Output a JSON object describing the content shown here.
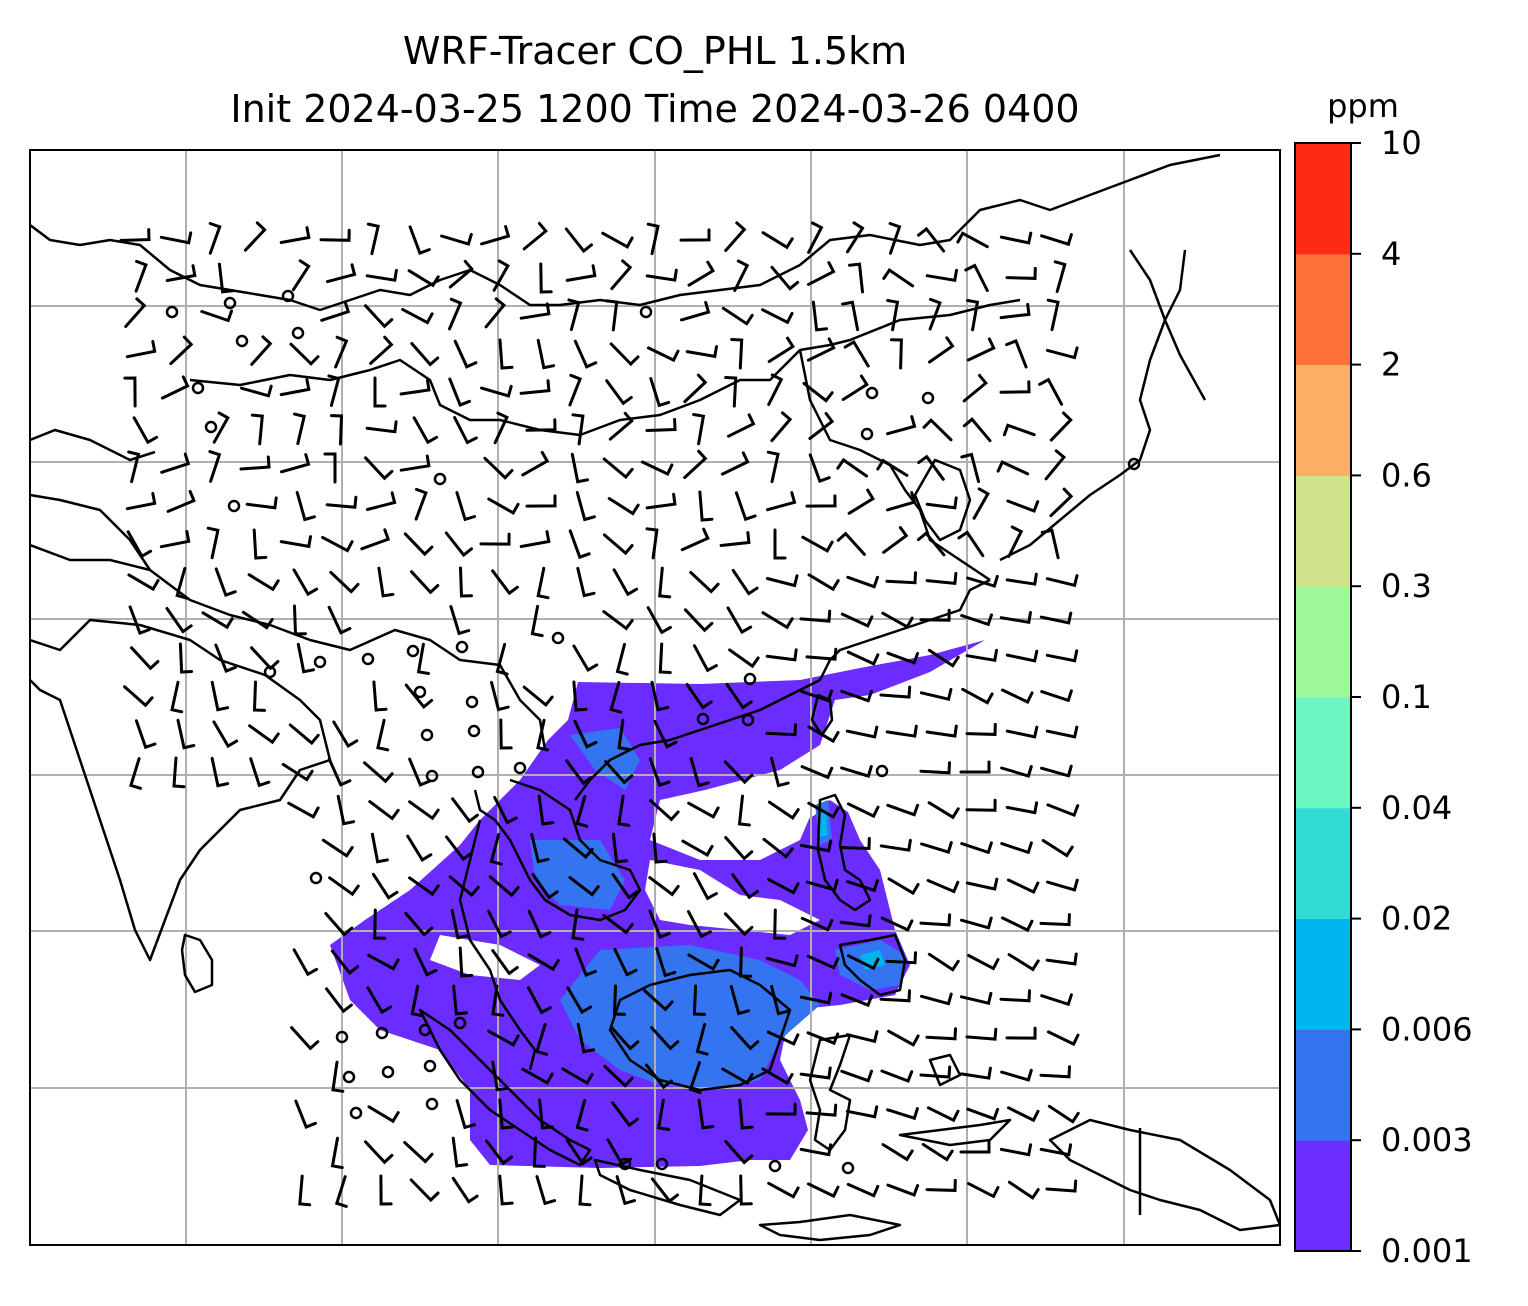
{
  "title": {
    "line1": "WRF-Tracer CO_PHL 1.5km",
    "line2": "Init 2024-03-25 1200 Time 2024-03-26 0400"
  },
  "colorbar": {
    "unit": "ppm",
    "levels": [
      "0.001",
      "0.003",
      "0.006",
      "0.02",
      "0.04",
      "0.1",
      "0.3",
      "0.6",
      "2",
      "4",
      "10"
    ],
    "colors": [
      "#6a2cff",
      "#3574f0",
      "#00b4ee",
      "#30ddd6",
      "#6af7c2",
      "#9efa9b",
      "#cfe28c",
      "#fbae64",
      "#fe7238",
      "#fd2b14"
    ]
  },
  "map": {
    "gridlines": true,
    "plume_colors": {
      "low": "#6a2cff",
      "mid": "#3574f0",
      "high": "#00b4ee"
    }
  }
}
